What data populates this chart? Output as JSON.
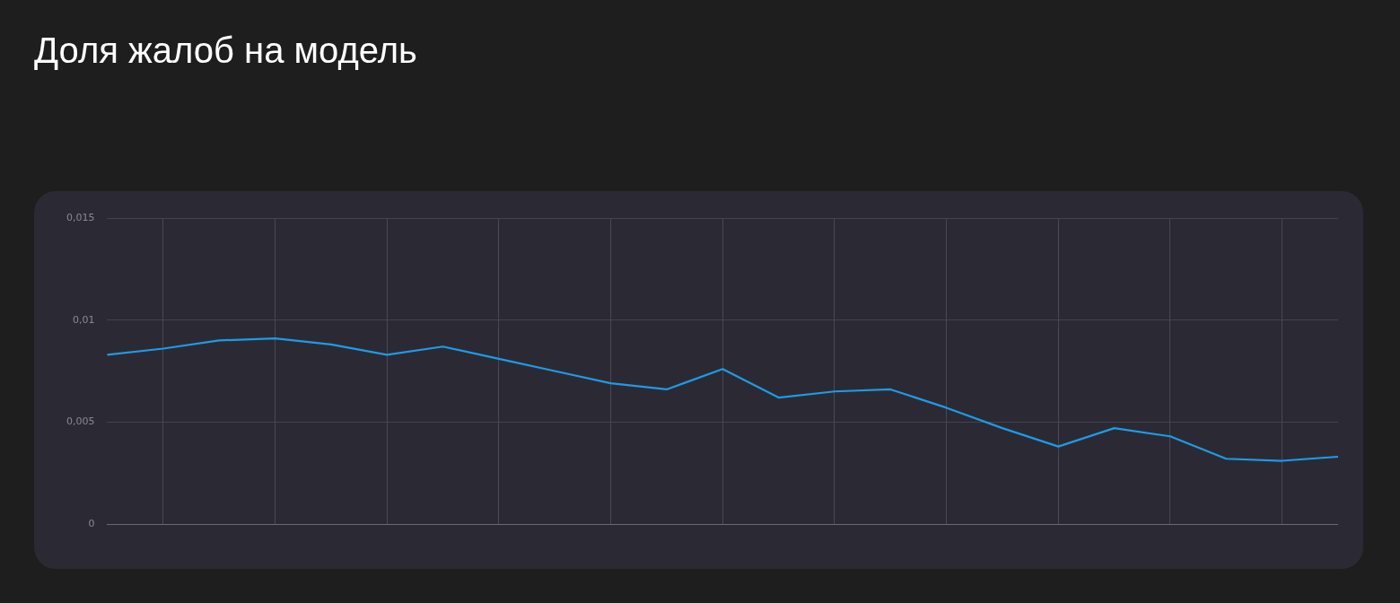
{
  "chart_data": {
    "type": "line",
    "title": "Доля жалоб на модель",
    "categories": [
      null,
      null,
      null,
      null,
      null,
      null,
      null,
      null,
      null,
      null,
      null,
      null,
      null,
      null,
      null,
      null,
      null,
      null,
      null,
      null,
      null,
      null,
      null
    ],
    "series": [
      {
        "color": "#1e9be6",
        "values": [
          0.0083,
          0.0086,
          0.009,
          0.0091,
          0.0088,
          0.0083,
          0.0087,
          0.0081,
          0.0075,
          0.0069,
          0.0066,
          0.0076,
          0.0062,
          0.0065,
          0.0066,
          0.0057,
          0.0047,
          0.0038,
          0.0047,
          0.0043,
          0.0032,
          0.0031,
          0.0033
        ]
      }
    ],
    "ylim": [
      0,
      0.015
    ],
    "yticks": [
      {
        "value": 0,
        "label": "0"
      },
      {
        "value": 0.005,
        "label": "0,005"
      },
      {
        "value": 0.01,
        "label": "0,01"
      },
      {
        "value": 0.015,
        "label": "0,015"
      }
    ],
    "grid": true,
    "legend": false,
    "marker": "none",
    "line_style": "solid",
    "tick_labels": "y"
  }
}
